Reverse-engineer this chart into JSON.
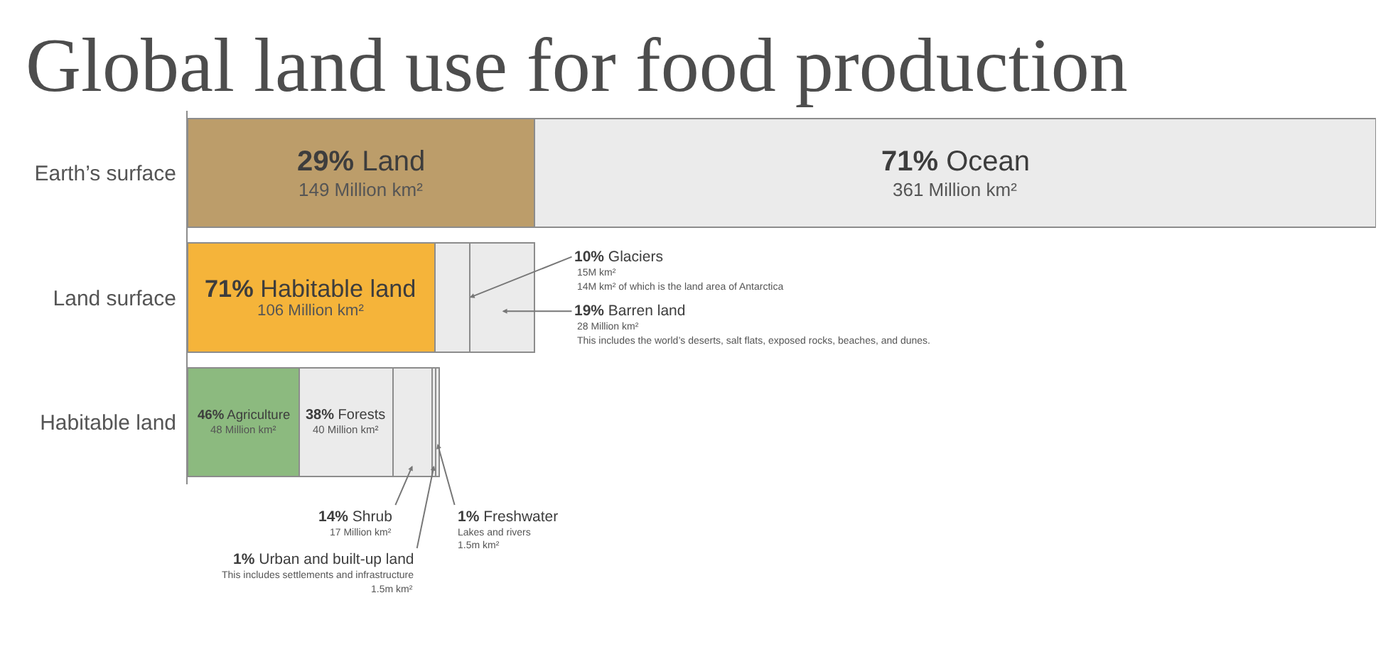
{
  "chart_data": {
    "type": "bar",
    "orientation": "horizontal",
    "stacked": true,
    "title": "Global land use for food production",
    "categories": [
      "Earth’s surface",
      "Land surface",
      "Habitable land"
    ],
    "tick_labels": "y",
    "series": [
      {
        "color": "#bc9d6a",
        "values": [
          149,
          null,
          null
        ],
        "value_labels": [
          "29% Land\n149 Million km²",
          null,
          null
        ]
      },
      {
        "color": "#ebebeb",
        "values": [
          361,
          null,
          null
        ],
        "value_labels": [
          "71% Ocean\n361 Million km²",
          null,
          null
        ]
      },
      {
        "color": "#f5b43a",
        "values": [
          null,
          106,
          null
        ],
        "value_labels": [
          null,
          "71% Habitable land\n106 Million km²",
          null
        ]
      },
      {
        "color": "#ebebeb",
        "values": [
          null,
          15,
          null
        ]
      },
      {
        "color": "#ebebeb",
        "values": [
          null,
          28,
          null
        ],
        "value_labels": [
          null,
          "19% Barren land\n28 Million km²\nThis includes the world’s deserts, salt flats, exposed rocks, beaches, and dunes.",
          null
        ]
      },
      {
        "color": "#8cba7f",
        "values": [
          null,
          null,
          48
        ],
        "value_labels": [
          null,
          null,
          "46% Agriculture\n48 Million km²"
        ]
      },
      {
        "color": "#ebebeb",
        "values": [
          null,
          null,
          40
        ],
        "value_labels": [
          null,
          null,
          "38% Forests\n40 Million km²"
        ]
      },
      {
        "color": "#ebebeb",
        "values": [
          null,
          null,
          17
        ],
        "value_labels": [
          null,
          null,
          "14% Shrub\n17 Million km²"
        ]
      },
      {
        "color": "#ebebeb",
        "values": [
          null,
          null,
          1.5
        ],
        "value_labels": [
          null,
          null,
          "1% Urban and built-up land\nThis includes settlements and infrastructure\n1.5m km²"
        ]
      },
      {
        "color": "#ebebeb",
        "values": [
          null,
          null,
          1.5
        ],
        "value_labels": [
          null,
          null,
          "1% Freshwater\nLakes and rivers\n1.5m km²"
        ]
      }
    ],
    "annotations": [
      {
        "text": "10% Glaciers\n15M km²\n14M km² of which is the land area of Antarctica",
        "x": 121,
        "y": "Land surface"
      }
    ]
  }
}
